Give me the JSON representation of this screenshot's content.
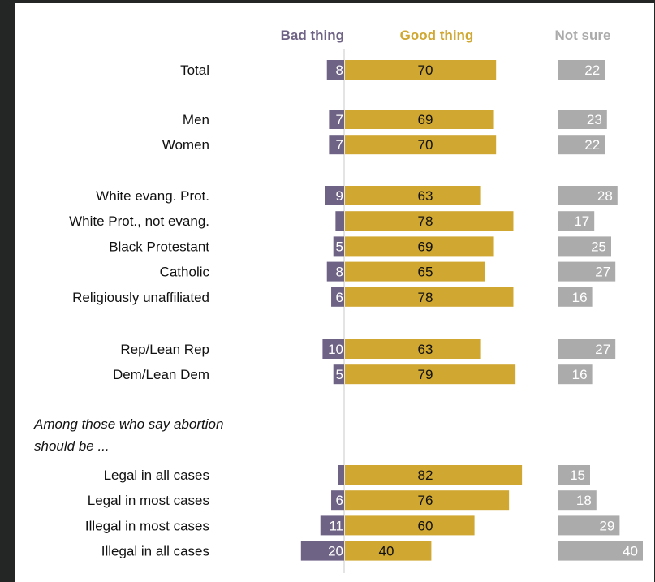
{
  "chart_data": {
    "type": "bar",
    "headers": {
      "bad": "Bad thing",
      "good": "Good thing",
      "not_sure": "Not sure"
    },
    "colors": {
      "bad": "#6e6285",
      "good": "#cfa731",
      "not_sure": "#ababab",
      "zero_line": "#c9c9c9"
    },
    "note_lines": [
      "Among those who say abortion",
      "should be ..."
    ],
    "rows": [
      {
        "label": "Total",
        "bad": 8,
        "good": 70,
        "not_sure": 22,
        "group": 0
      },
      {
        "label": "Men",
        "bad": 7,
        "good": 69,
        "not_sure": 23,
        "group": 1
      },
      {
        "label": "Women",
        "bad": 7,
        "good": 70,
        "not_sure": 22,
        "group": 1
      },
      {
        "label": "White evang. Prot.",
        "bad": 9,
        "good": 63,
        "not_sure": 28,
        "group": 2
      },
      {
        "label": "White Prot., not evang.",
        "bad": 4,
        "bad_label_shown": false,
        "good": 78,
        "not_sure": 17,
        "group": 2
      },
      {
        "label": "Black Protestant",
        "bad": 5,
        "good": 69,
        "not_sure": 25,
        "group": 2
      },
      {
        "label": "Catholic",
        "bad": 8,
        "good": 65,
        "not_sure": 27,
        "group": 2
      },
      {
        "label": "Religiously unaffiliated",
        "bad": 6,
        "good": 78,
        "not_sure": 16,
        "group": 2
      },
      {
        "label": "Rep/Lean Rep",
        "bad": 10,
        "good": 63,
        "not_sure": 27,
        "group": 3
      },
      {
        "label": "Dem/Lean Dem",
        "bad": 5,
        "good": 79,
        "not_sure": 16,
        "group": 3
      },
      {
        "label": "Legal in all cases",
        "bad": 3,
        "bad_label_shown": false,
        "good": 82,
        "not_sure": 15,
        "group": 4
      },
      {
        "label": "Legal in most cases",
        "bad": 6,
        "good": 76,
        "not_sure": 18,
        "group": 4
      },
      {
        "label": "Illegal in most cases",
        "bad": 11,
        "good": 60,
        "not_sure": 29,
        "group": 4
      },
      {
        "label": "Illegal in all cases",
        "bad": 20,
        "good": 40,
        "not_sure": 40,
        "group": 4
      }
    ]
  }
}
